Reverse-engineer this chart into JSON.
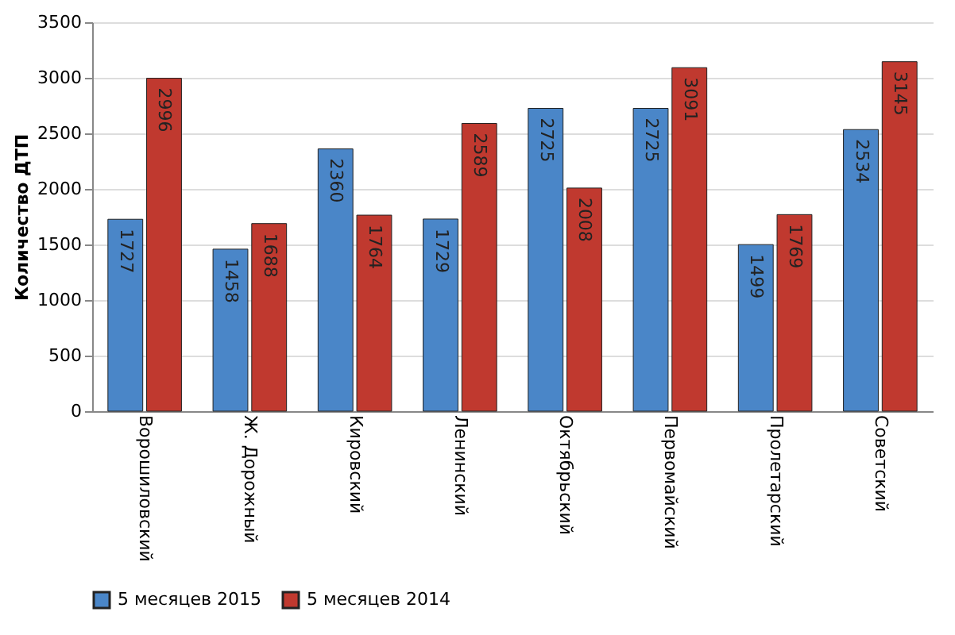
{
  "chart_data": {
    "type": "bar",
    "ylabel": "Количество ДТП",
    "categories": [
      "Ворошиловский",
      "Ж. Дорожный",
      "Кировский",
      "Ленинский",
      "Октябрьский",
      "Первомайский",
      "Пролетарский",
      "Советский"
    ],
    "series": [
      {
        "name": "5 месяцев 2015",
        "color": "#4a86c8",
        "values": [
          1727,
          1458,
          2360,
          1729,
          2725,
          2725,
          1499,
          2534
        ]
      },
      {
        "name": "5 месяцев 2014",
        "color": "#c0392f",
        "values": [
          2996,
          1688,
          1764,
          2589,
          2008,
          3091,
          1769,
          3145
        ]
      }
    ],
    "ylim": [
      0,
      3500
    ],
    "yticks": [
      0,
      500,
      1000,
      1500,
      2000,
      2500,
      3000,
      3500
    ],
    "grid": "y",
    "legend": "bottom",
    "data_labels": true
  }
}
